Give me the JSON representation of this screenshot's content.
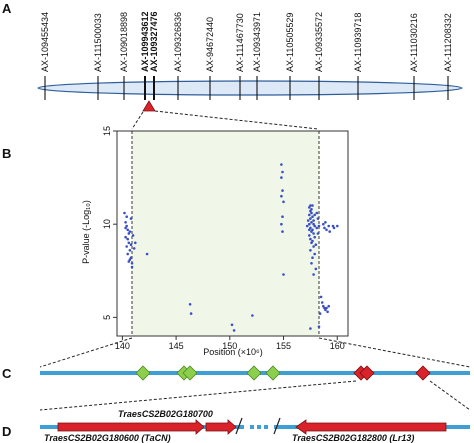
{
  "panels": {
    "a": {
      "label": "A",
      "markers": [
        {
          "name": "AX-109455434",
          "bold": false
        },
        {
          "name": "AX-111500033",
          "bold": false
        },
        {
          "name": "AX-109018898",
          "bold": false
        },
        {
          "name": "AX-109943612",
          "bold": true
        },
        {
          "name": "AX-109327476",
          "bold": true
        },
        {
          "name": "AX-109326836",
          "bold": false
        },
        {
          "name": "AX-94672440",
          "bold": false
        },
        {
          "name": "AX-111467730",
          "bold": false
        },
        {
          "name": "AX-109343971",
          "bold": false
        },
        {
          "name": "AX-110505529",
          "bold": false
        },
        {
          "name": "AX-109335572",
          "bold": false
        },
        {
          "name": "AX-110939718",
          "bold": false
        },
        {
          "name": "AX-111030216",
          "bold": false
        },
        {
          "name": "AX-111208332",
          "bold": false
        }
      ]
    },
    "b": {
      "label": "B",
      "x_label": "Position (×10⁶)",
      "y_label": "P-value (-Log₁₀)"
    },
    "c": {
      "label": "C"
    },
    "d": {
      "label": "D",
      "genes": [
        {
          "id": "TraesCS2B02G180600 (TaCN)"
        },
        {
          "id": "TraesCS2B02G180700"
        },
        {
          "id": "TraesCS2B02G182800 (Lr13)"
        }
      ]
    }
  },
  "colors": {
    "chromosome_fill": "#dde9f7",
    "chromosome_stroke": "#2e5f9a",
    "plot_background": "#f0f7e8",
    "points": "#3a4fc4",
    "line_blue": "#3d9fd6",
    "diamond_green": "#8ccf4d",
    "diamond_red": "#d9222a",
    "gene_arrow": "#d9222a",
    "triangle": "#d9222a"
  },
  "chart_data": {
    "type": "scatter",
    "xlim": [
      139.5,
      161
    ],
    "ylim": [
      4,
      15
    ],
    "x_ticks": [
      140,
      145,
      150,
      155,
      160
    ],
    "y_ticks": [
      5,
      10,
      15
    ],
    "grid": false,
    "points": [
      [
        140.2,
        10.6
      ],
      [
        140.3,
        10.1
      ],
      [
        140.4,
        9.9
      ],
      [
        140.5,
        9.7
      ],
      [
        140.6,
        9.5
      ],
      [
        140.7,
        9.6
      ],
      [
        140.3,
        9.3
      ],
      [
        140.5,
        9.2
      ],
      [
        140.6,
        9.0
      ],
      [
        140.8,
        8.9
      ],
      [
        140.4,
        8.8
      ],
      [
        140.7,
        8.6
      ],
      [
        140.5,
        8.4
      ],
      [
        140.8,
        8.2
      ],
      [
        140.6,
        8.0
      ],
      [
        140.9,
        7.9
      ],
      [
        140.3,
        9.8
      ],
      [
        141.0,
        9.4
      ],
      [
        140.8,
        10.3
      ],
      [
        141.1,
        8.7
      ],
      [
        140.9,
        7.7
      ],
      [
        140.4,
        10.4
      ],
      [
        141.2,
        9.0
      ],
      [
        140.7,
        8.1
      ],
      [
        142.3,
        8.4
      ],
      [
        146.3,
        5.7
      ],
      [
        146.4,
        5.2
      ],
      [
        150.2,
        4.6
      ],
      [
        150.4,
        4.3
      ],
      [
        152.1,
        5.1
      ],
      [
        154.8,
        13.2
      ],
      [
        154.9,
        12.8
      ],
      [
        154.8,
        12.5
      ],
      [
        154.9,
        11.8
      ],
      [
        154.8,
        11.5
      ],
      [
        155.0,
        11.2
      ],
      [
        154.9,
        10.4
      ],
      [
        154.8,
        10.0
      ],
      [
        154.9,
        9.6
      ],
      [
        155.0,
        7.3
      ],
      [
        157.4,
        10.9
      ],
      [
        157.5,
        10.7
      ],
      [
        157.6,
        10.6
      ],
      [
        157.4,
        10.5
      ],
      [
        157.7,
        10.4
      ],
      [
        157.5,
        10.3
      ],
      [
        157.8,
        10.2
      ],
      [
        157.6,
        10.1
      ],
      [
        157.4,
        10.0
      ],
      [
        157.9,
        9.9
      ],
      [
        157.5,
        9.8
      ],
      [
        157.7,
        9.7
      ],
      [
        157.6,
        9.6
      ],
      [
        157.8,
        9.5
      ],
      [
        157.4,
        9.4
      ],
      [
        157.9,
        9.3
      ],
      [
        157.5,
        9.2
      ],
      [
        157.7,
        9.1
      ],
      [
        157.6,
        9.0
      ],
      [
        158.0,
        8.9
      ],
      [
        157.8,
        8.8
      ],
      [
        157.5,
        8.6
      ],
      [
        157.9,
        8.4
      ],
      [
        157.7,
        8.2
      ],
      [
        157.6,
        7.9
      ],
      [
        158.0,
        7.6
      ],
      [
        157.8,
        7.3
      ],
      [
        157.5,
        11.0
      ],
      [
        158.1,
        10.6
      ],
      [
        158.1,
        9.8
      ],
      [
        157.6,
        10.8
      ],
      [
        157.4,
        9.7
      ],
      [
        157.3,
        10.2
      ],
      [
        157.2,
        9.9
      ],
      [
        157.8,
        10.0
      ],
      [
        158.2,
        10.3
      ],
      [
        158.2,
        9.5
      ],
      [
        158.3,
        9.9
      ],
      [
        157.7,
        11.0
      ],
      [
        157.9,
        10.5
      ],
      [
        158.7,
        10.0
      ],
      [
        158.8,
        9.8
      ],
      [
        158.9,
        10.1
      ],
      [
        159.0,
        9.7
      ],
      [
        159.2,
        9.9
      ],
      [
        159.3,
        9.6
      ],
      [
        159.6,
        9.9
      ],
      [
        159.7,
        9.8
      ],
      [
        160.0,
        9.9
      ],
      [
        158.5,
        6.1
      ],
      [
        158.6,
        5.8
      ],
      [
        158.7,
        5.6
      ],
      [
        158.8,
        5.5
      ],
      [
        158.9,
        5.4
      ],
      [
        159.0,
        5.5
      ],
      [
        159.1,
        5.3
      ],
      [
        159.2,
        5.6
      ],
      [
        158.4,
        5.2
      ],
      [
        158.3,
        4.5
      ],
      [
        157.5,
        4.4
      ]
    ]
  }
}
